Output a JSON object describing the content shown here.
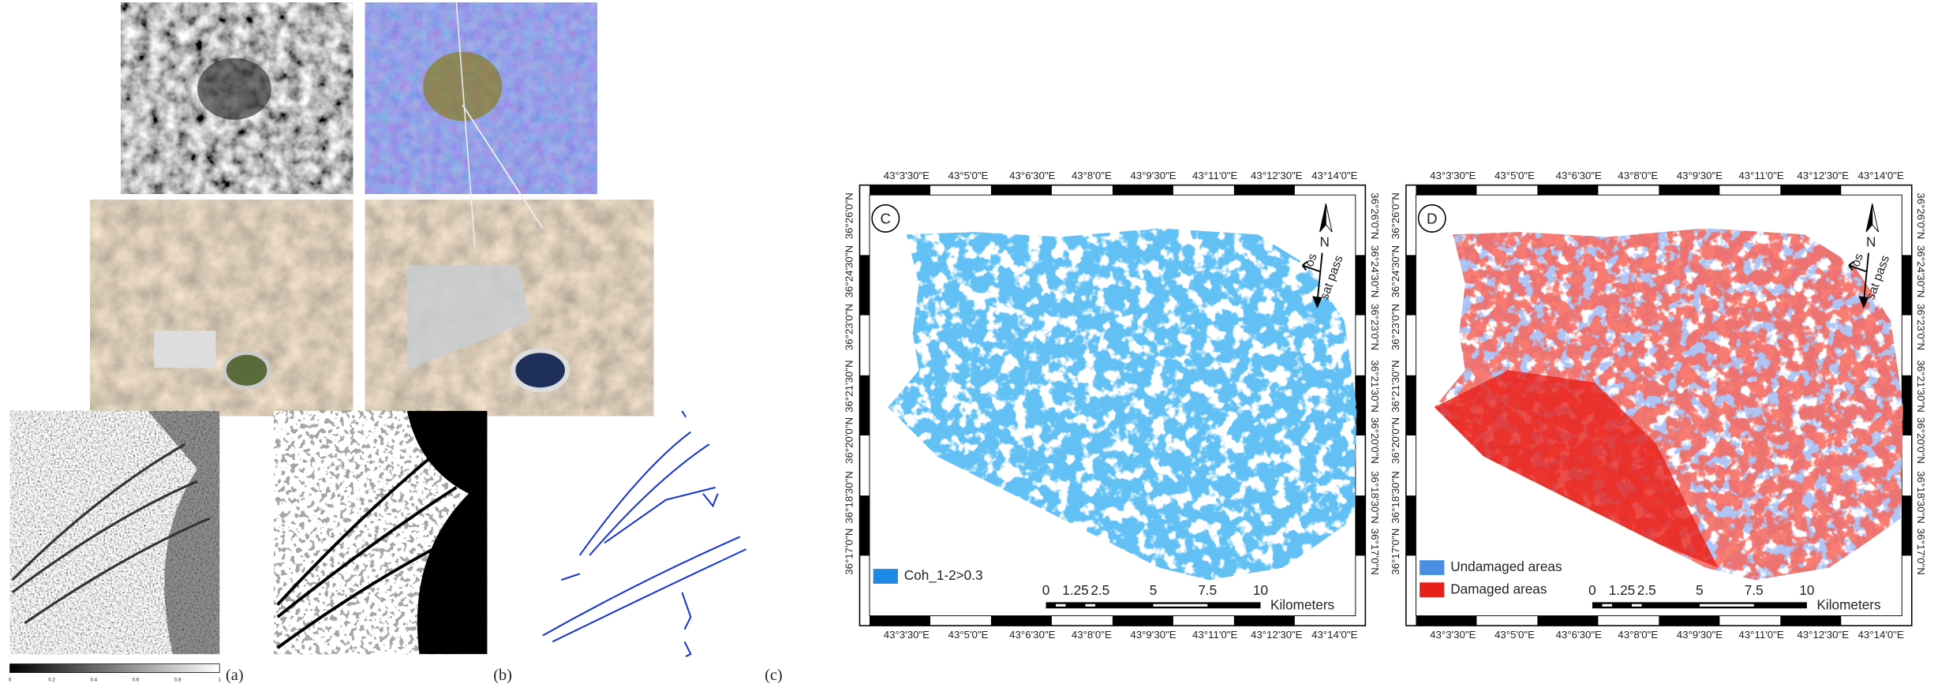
{
  "panel_labels": [
    "(a)",
    "(b)",
    "(c)"
  ],
  "colorbar_ticks": [
    "0",
    "0.2",
    "0.4",
    "0.6",
    "0.8",
    "1"
  ],
  "lon_labels": [
    "43°3'30\"E",
    "43°5'0\"E",
    "43°6'30\"E",
    "43°8'0\"E",
    "43°9'30\"E",
    "43°11'0\"E",
    "43°12'30\"E",
    "43°14'0\"E"
  ],
  "lat_labels": [
    "36°26'0\"N",
    "36°24'30\"N",
    "36°23'0\"N",
    "36°21'30\"N",
    "36°20'0\"N",
    "36°18'30\"N",
    "36°17'0\"N"
  ],
  "north": "N",
  "los": "los",
  "sat_pass": "sat pass",
  "scale_bar": {
    "ticks": [
      "0",
      "1.25",
      "2.5",
      "5",
      "7.5",
      "10"
    ],
    "unit": "Kilometers"
  },
  "maps": [
    {
      "label": "C",
      "legend": [
        "Coh_1-2>0.3"
      ]
    },
    {
      "label": "D",
      "legend": [
        "Undamaged areas",
        "Damaged areas"
      ]
    }
  ]
}
